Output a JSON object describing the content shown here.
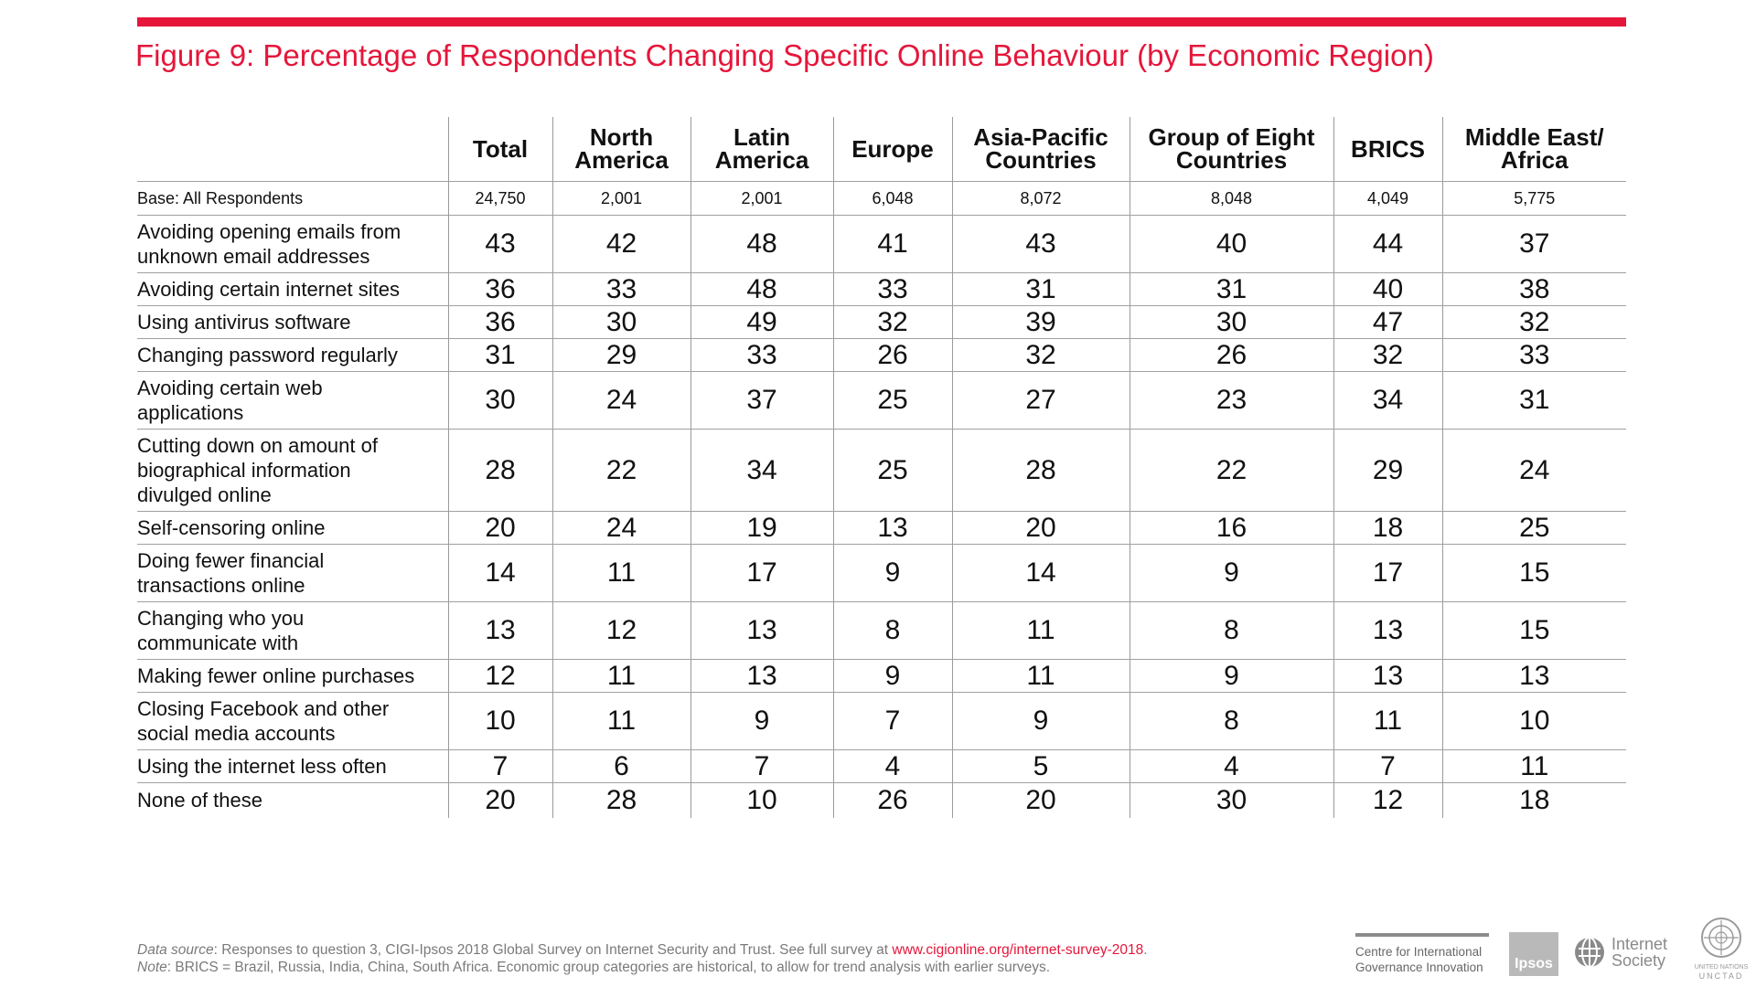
{
  "title": "Figure 9: Percentage of Respondents Changing Specific Online Behaviour (by Economic Region)",
  "accent_color": "#e5163a",
  "chart_data": {
    "type": "table",
    "columns": [
      {
        "line1": "Total",
        "line2": ""
      },
      {
        "line1": "North",
        "line2": "America"
      },
      {
        "line1": "Latin",
        "line2": "America"
      },
      {
        "line1": "Europe",
        "line2": ""
      },
      {
        "line1": "Asia-Pacific",
        "line2": "Countries"
      },
      {
        "line1": "Group of Eight",
        "line2": "Countries"
      },
      {
        "line1": "BRICS",
        "line2": ""
      },
      {
        "line1": "Middle East/",
        "line2": "Africa"
      }
    ],
    "base": {
      "label": "Base: All Respondents",
      "values": [
        "24,750",
        "2,001",
        "2,001",
        "6,048",
        "8,072",
        "8,048",
        "4,049",
        "5,775"
      ]
    },
    "rows": [
      {
        "lines": [
          "Avoiding opening emails from",
          "unknown email addresses"
        ],
        "values": [
          43,
          42,
          48,
          41,
          43,
          40,
          44,
          37
        ]
      },
      {
        "lines": [
          "Avoiding certain internet sites"
        ],
        "values": [
          36,
          33,
          48,
          33,
          31,
          31,
          40,
          38
        ]
      },
      {
        "lines": [
          "Using antivirus software"
        ],
        "values": [
          36,
          30,
          49,
          32,
          39,
          30,
          47,
          32
        ]
      },
      {
        "lines": [
          "Changing password regularly"
        ],
        "values": [
          31,
          29,
          33,
          26,
          32,
          26,
          32,
          33
        ]
      },
      {
        "lines": [
          "Avoiding certain web",
          "applications"
        ],
        "values": [
          30,
          24,
          37,
          25,
          27,
          23,
          34,
          31
        ]
      },
      {
        "lines": [
          "Cutting down on amount of",
          "biographical information",
          "divulged online"
        ],
        "values": [
          28,
          22,
          34,
          25,
          28,
          22,
          29,
          24
        ]
      },
      {
        "lines": [
          "Self-censoring online"
        ],
        "values": [
          20,
          24,
          19,
          13,
          20,
          16,
          18,
          25
        ]
      },
      {
        "lines": [
          "Doing fewer financial",
          "transactions online"
        ],
        "values": [
          14,
          11,
          17,
          9,
          14,
          9,
          17,
          15
        ]
      },
      {
        "lines": [
          "Changing who you",
          "communicate with"
        ],
        "values": [
          13,
          12,
          13,
          8,
          11,
          8,
          13,
          15
        ]
      },
      {
        "lines": [
          "Making fewer online purchases"
        ],
        "values": [
          12,
          11,
          13,
          9,
          11,
          9,
          13,
          13
        ]
      },
      {
        "lines": [
          "Closing Facebook and other",
          "social media accounts"
        ],
        "values": [
          10,
          11,
          9,
          7,
          9,
          8,
          11,
          10
        ]
      },
      {
        "lines": [
          "Using the internet less often"
        ],
        "values": [
          7,
          6,
          7,
          4,
          5,
          4,
          7,
          11
        ]
      },
      {
        "lines": [
          "None of these"
        ],
        "values": [
          20,
          28,
          10,
          26,
          20,
          30,
          12,
          18
        ]
      }
    ]
  },
  "footnote": {
    "source_label": "Data source",
    "source_text": ": Responses to question 3, CIGI-Ipsos 2018 Global Survey on Internet Security and Trust. See full survey at ",
    "source_link": "www.cigionline.org/internet-survey-2018",
    "source_end": ".",
    "note_label": "Note",
    "note_text": ": BRICS = Brazil, Russia, India, China, South Africa. Economic group categories are historical, to allow for trend analysis with earlier surveys."
  },
  "logos": {
    "cigi_line1": "Centre for International",
    "cigi_line2": "Governance Innovation",
    "ipsos": "Ipsos",
    "isoc_line1": "Internet",
    "isoc_line2": "Society",
    "un_small": "UNITED NATIONS",
    "unctad": "UNCTAD"
  }
}
